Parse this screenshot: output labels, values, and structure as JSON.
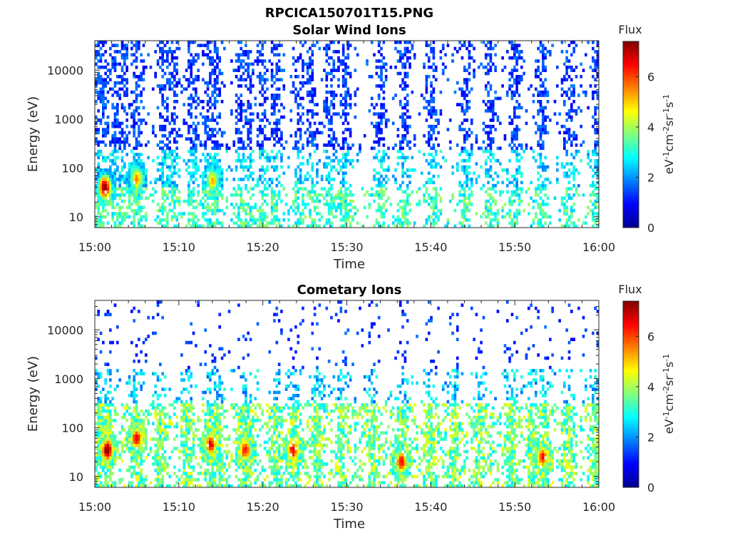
{
  "figure_title": "RPCICA150701T15.PNG",
  "chart_data": [
    {
      "type": "heatmap",
      "title": "Solar Wind Ions",
      "xlabel": "Time",
      "ylabel": "Energy (eV)",
      "x_ticks": [
        "15:00",
        "15:10",
        "15:20",
        "15:30",
        "15:40",
        "15:50",
        "16:00"
      ],
      "xlim": [
        "15:00",
        "16:00"
      ],
      "y_scale": "log",
      "y_ticks": [
        "10",
        "100",
        "1000",
        "10000"
      ],
      "ylim": [
        6,
        40000
      ],
      "colorbar": {
        "title": "Flux",
        "label": "eV-1cm-2sr-1s-1",
        "ticks": [
          "0",
          "2",
          "4",
          "6"
        ],
        "range": [
          0,
          7.4
        ],
        "colormap": "jet"
      },
      "scan_times_min": [
        0.3,
        1.0,
        2.5,
        3.3,
        5.0,
        8.2,
        9.3,
        11.7,
        13.5,
        14.2,
        17.3,
        18.4,
        20.0,
        21.6,
        24.3,
        25.8,
        28.0,
        29.8,
        34.0,
        36.9,
        40.2,
        44.1,
        47.0,
        50.1,
        53.2,
        56.5,
        59.8
      ],
      "series": [
        {
          "name": "background high-energy flux",
          "energy_ev": [
            200,
            30000
          ],
          "flux": 1.0
        },
        {
          "name": "low-energy peak",
          "time_min": 1.2,
          "energy_ev": 40,
          "flux": 7.0
        },
        {
          "name": "low-energy peak",
          "time_min": 5.0,
          "energy_ev": 60,
          "flux": 5.2
        },
        {
          "name": "low-energy peak",
          "time_min": 14.0,
          "energy_ev": 55,
          "flux": 5.0
        }
      ]
    },
    {
      "type": "heatmap",
      "title": "Cometary Ions",
      "xlabel": "Time",
      "ylabel": "Energy (eV)",
      "x_ticks": [
        "15:00",
        "15:10",
        "15:20",
        "15:30",
        "15:40",
        "15:50",
        "16:00"
      ],
      "xlim": [
        "15:00",
        "16:00"
      ],
      "y_scale": "log",
      "y_ticks": [
        "10",
        "100",
        "1000",
        "10000"
      ],
      "ylim": [
        6,
        40000
      ],
      "colorbar": {
        "title": "Flux",
        "label": "eV-1cm-2sr-1s-1",
        "ticks": [
          "0",
          "2",
          "4",
          "6"
        ],
        "range": [
          0,
          7.4
        ],
        "colormap": "jet"
      },
      "scan_times_min": [
        0.5,
        1.5,
        5.0,
        7.8,
        11.0,
        14.0,
        14.8,
        18.0,
        21.6,
        23.7,
        26.4,
        29.5,
        33.0,
        36.6,
        39.9,
        42.8,
        45.9,
        49.5,
        52.0,
        53.5,
        56.3,
        59.7
      ],
      "series": [
        {
          "name": "low-energy peak",
          "time_min": 1.5,
          "energy_ev": 35,
          "flux": 7.2
        },
        {
          "name": "low-energy peak",
          "time_min": 5.0,
          "energy_ev": 60,
          "flux": 6.4
        },
        {
          "name": "low-energy peak",
          "time_min": 13.8,
          "energy_ev": 45,
          "flux": 6.5
        },
        {
          "name": "low-energy peak",
          "time_min": 17.9,
          "energy_ev": 35,
          "flux": 6.2
        },
        {
          "name": "low-energy peak",
          "time_min": 23.6,
          "energy_ev": 35,
          "flux": 6.4
        },
        {
          "name": "low-energy peak",
          "time_min": 36.5,
          "energy_ev": 20,
          "flux": 6.3
        },
        {
          "name": "low-energy peak",
          "time_min": 53.3,
          "energy_ev": 25,
          "flux": 6.2
        }
      ]
    }
  ]
}
